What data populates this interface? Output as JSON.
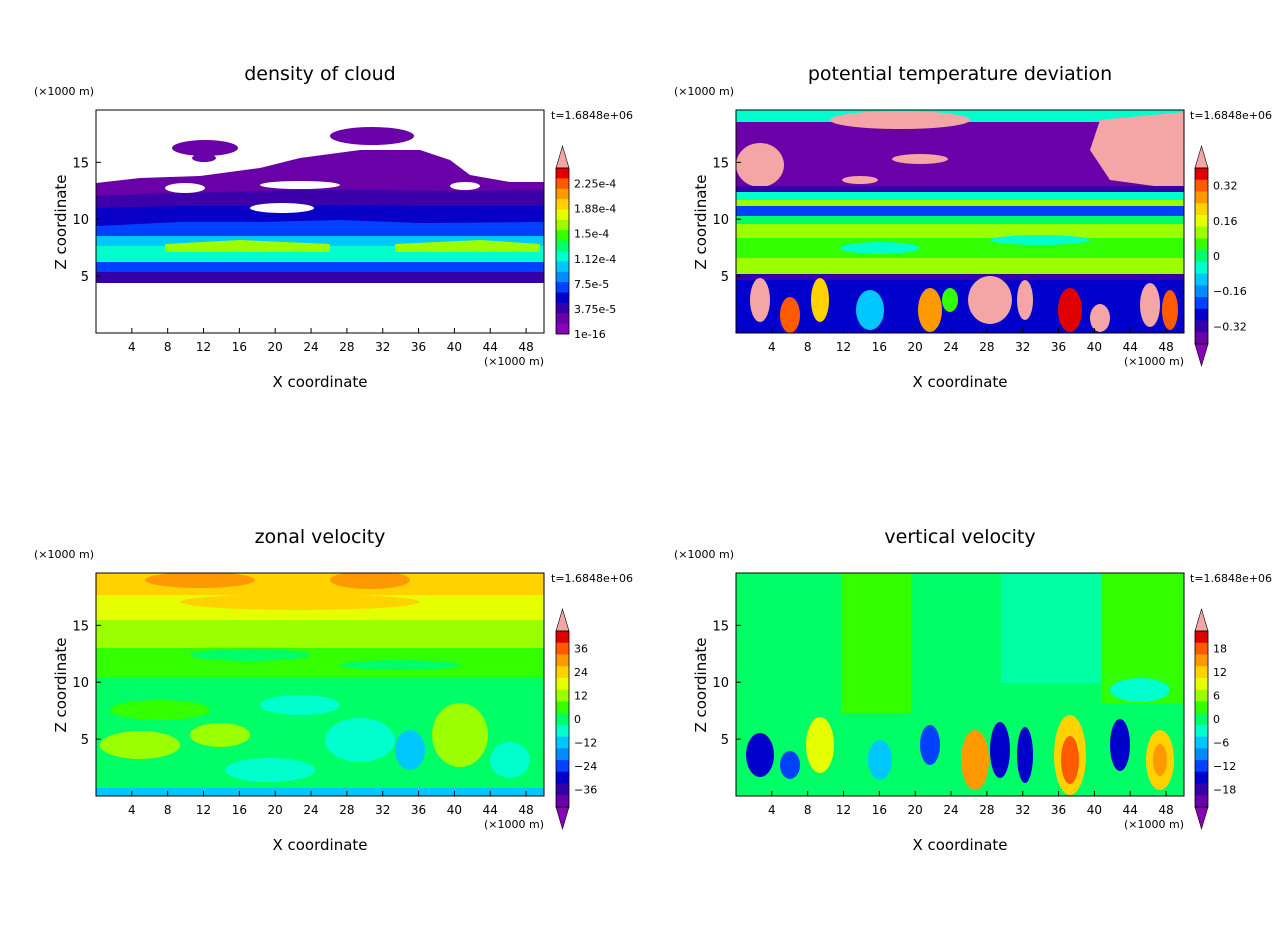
{
  "chart_data": [
    {
      "type": "heatmap",
      "title": "density of cloud",
      "xlabel": "X coordinate",
      "ylabel": "Z coordinate",
      "x_unit": "(×1000 m)",
      "y_unit": "(×1000 m)",
      "time_label": "t=1.6848e+06",
      "xlim": [
        0,
        50
      ],
      "ylim": [
        0,
        19.6
      ],
      "x_ticks": [
        "4",
        "8",
        "12",
        "16",
        "20",
        "24",
        "28",
        "32",
        "36",
        "40",
        "44",
        "48"
      ],
      "y_ticks": [
        "5",
        "10",
        "15"
      ],
      "colorbar": {
        "labels": [
          "2.25e-4",
          "1.88e-4",
          "1.5e-4",
          "1.12e-4",
          "7.5e-5",
          "3.75e-5",
          "1e-16"
        ],
        "colors": [
          "#f4a6a6",
          "#e00000",
          "#ff5a00",
          "#ff9900",
          "#ffd200",
          "#e6ff00",
          "#9cff00",
          "#33ff00",
          "#00ff66",
          "#00ffcc",
          "#00c8ff",
          "#008cff",
          "#0040ff",
          "#0000cc",
          "#3300aa",
          "#6a00a8",
          "#8a00b8"
        ],
        "extend": "max"
      }
    },
    {
      "type": "heatmap",
      "title": "potential temperature deviation",
      "xlabel": "X coordinate",
      "ylabel": "Z coordinate",
      "x_unit": "(×1000 m)",
      "y_unit": "(×1000 m)",
      "time_label": "t=1.6848e+06",
      "xlim": [
        0,
        50
      ],
      "ylim": [
        0,
        19.6
      ],
      "x_ticks": [
        "4",
        "8",
        "12",
        "16",
        "20",
        "24",
        "28",
        "32",
        "36",
        "40",
        "44",
        "48"
      ],
      "y_ticks": [
        "5",
        "10",
        "15"
      ],
      "colorbar": {
        "labels": [
          "0.32",
          "0.16",
          "0",
          "−0.16",
          "−0.32"
        ],
        "colors": [
          "#f4a6a6",
          "#e00000",
          "#ff5a00",
          "#ff9900",
          "#ffd200",
          "#e6ff00",
          "#9cff00",
          "#33ff00",
          "#00ff66",
          "#00ffcc",
          "#00c8ff",
          "#008cff",
          "#0040ff",
          "#0000cc",
          "#3300aa",
          "#6a00a8",
          "#8a00b8"
        ],
        "extend": "both"
      }
    },
    {
      "type": "heatmap",
      "title": "zonal velocity",
      "xlabel": "X coordinate",
      "ylabel": "Z coordinate",
      "x_unit": "(×1000 m)",
      "y_unit": "(×1000 m)",
      "time_label": "t=1.6848e+06",
      "xlim": [
        0,
        50
      ],
      "ylim": [
        0,
        19.6
      ],
      "x_ticks": [
        "4",
        "8",
        "12",
        "16",
        "20",
        "24",
        "28",
        "32",
        "36",
        "40",
        "44",
        "48"
      ],
      "y_ticks": [
        "5",
        "10",
        "15"
      ],
      "colorbar": {
        "labels": [
          "36",
          "24",
          "12",
          "0",
          "−12",
          "−24",
          "−36"
        ],
        "colors": [
          "#f4a6a6",
          "#e00000",
          "#ff5a00",
          "#ff9900",
          "#ffd200",
          "#e6ff00",
          "#9cff00",
          "#33ff00",
          "#00ff66",
          "#00ffcc",
          "#00c8ff",
          "#008cff",
          "#0040ff",
          "#0000cc",
          "#3300aa",
          "#6a00a8",
          "#8a00b8"
        ],
        "extend": "both"
      }
    },
    {
      "type": "heatmap",
      "title": "vertical velocity",
      "xlabel": "X coordinate",
      "ylabel": "Z coordinate",
      "x_unit": "(×1000 m)",
      "y_unit": "(×1000 m)",
      "time_label": "t=1.6848e+06",
      "xlim": [
        0,
        50
      ],
      "ylim": [
        0,
        19.6
      ],
      "x_ticks": [
        "4",
        "8",
        "12",
        "16",
        "20",
        "24",
        "28",
        "32",
        "36",
        "40",
        "44",
        "48"
      ],
      "y_ticks": [
        "5",
        "10",
        "15"
      ],
      "colorbar": {
        "labels": [
          "18",
          "12",
          "6",
          "0",
          "−6",
          "−12",
          "−18"
        ],
        "colors": [
          "#f4a6a6",
          "#e00000",
          "#ff5a00",
          "#ff9900",
          "#ffd200",
          "#e6ff00",
          "#9cff00",
          "#33ff00",
          "#00ff66",
          "#00ffcc",
          "#00c8ff",
          "#008cff",
          "#0040ff",
          "#0000cc",
          "#3300aa",
          "#6a00a8",
          "#8a00b8"
        ],
        "extend": "both"
      }
    }
  ]
}
